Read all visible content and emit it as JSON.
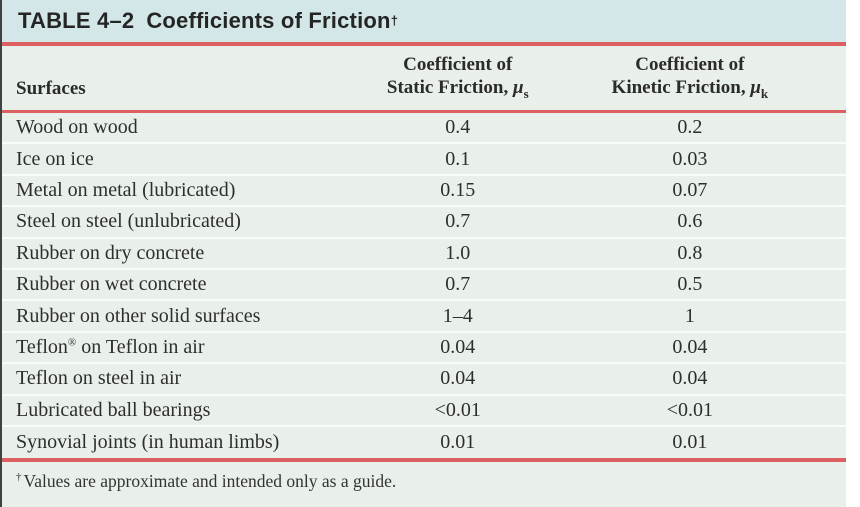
{
  "table": {
    "title_prefix": "TABLE 4–2",
    "title_text": "Coefficients of Friction",
    "title_dagger": "†",
    "columns": {
      "surfaces": "Surfaces",
      "static_line1": "Coefficient of",
      "static_line2": "Static Friction, ",
      "static_symbol": "μ",
      "static_sub": "s",
      "kinetic_line1": "Coefficient of",
      "kinetic_line2": "Kinetic Friction, ",
      "kinetic_symbol": "μ",
      "kinetic_sub": "k"
    },
    "rows": [
      {
        "surface": "Wood on wood",
        "static": "0.4",
        "kinetic": "0.2"
      },
      {
        "surface": "Ice on ice",
        "static": "0.1",
        "kinetic": "0.03"
      },
      {
        "surface": "Metal on metal (lubricated)",
        "static": "0.15",
        "kinetic": "0.07"
      },
      {
        "surface": "Steel on steel (unlubricated)",
        "static": "0.7",
        "kinetic": "0.6"
      },
      {
        "surface": "Rubber on dry concrete",
        "static": "1.0",
        "kinetic": "0.8"
      },
      {
        "surface": "Rubber on wet concrete",
        "static": "0.7",
        "kinetic": "0.5"
      },
      {
        "surface": "Rubber on other solid surfaces",
        "static": "1–4",
        "kinetic": "1"
      },
      {
        "surface": "Teflon® on Teflon in air",
        "static": "0.04",
        "kinetic": "0.04"
      },
      {
        "surface": "Teflon on steel in air",
        "static": "0.04",
        "kinetic": "0.04"
      },
      {
        "surface": "Lubricated ball bearings",
        "static": "<0.01",
        "kinetic": "<0.01"
      },
      {
        "surface": "Synovial joints (in human limbs)",
        "static": "0.01",
        "kinetic": "0.01"
      }
    ],
    "footnote_dagger": "†",
    "footnote": "Values are approximate and intended only as a guide.",
    "colors": {
      "title_bar_bg": "#d3e7e8",
      "body_bg": "#e9f0ea",
      "rule_red": "#dc5f62",
      "row_separator": "#f8fbf8",
      "left_edge": "#414141",
      "text": "#2e2e2e"
    }
  },
  "chart_data": {
    "type": "table",
    "title": "TABLE 4–2 Coefficients of Friction†",
    "columns": [
      "Surfaces",
      "Coefficient of Static Friction, μs",
      "Coefficient of Kinetic Friction, μk"
    ],
    "rows": [
      [
        "Wood on wood",
        "0.4",
        "0.2"
      ],
      [
        "Ice on ice",
        "0.1",
        "0.03"
      ],
      [
        "Metal on metal (lubricated)",
        "0.15",
        "0.07"
      ],
      [
        "Steel on steel (unlubricated)",
        "0.7",
        "0.6"
      ],
      [
        "Rubber on dry concrete",
        "1.0",
        "0.8"
      ],
      [
        "Rubber on wet concrete",
        "0.7",
        "0.5"
      ],
      [
        "Rubber on other solid surfaces",
        "1–4",
        "1"
      ],
      [
        "Teflon® on Teflon in air",
        "0.04",
        "0.04"
      ],
      [
        "Teflon on steel in air",
        "0.04",
        "0.04"
      ],
      [
        "Lubricated ball bearings",
        "<0.01",
        "<0.01"
      ],
      [
        "Synovial joints (in human limbs)",
        "0.01",
        "0.01"
      ]
    ],
    "footnote": "† Values are approximate and intended only as a guide."
  }
}
